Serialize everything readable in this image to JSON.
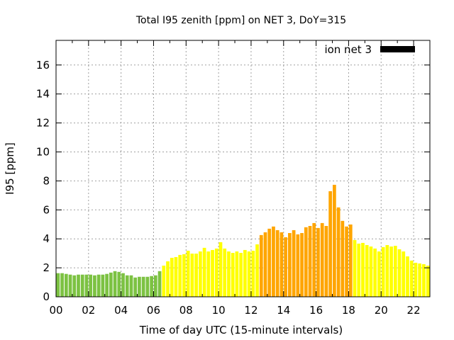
{
  "chart_data": {
    "type": "bar",
    "title": "Total I95 zenith [ppm] on NET 3, DoY=315",
    "xlabel": "Time of day UTC (15-minute intervals)",
    "ylabel": "I95 [ppm]",
    "xlim": [
      0,
      23
    ],
    "ylim": [
      0,
      17.7
    ],
    "bin_hours": 0.25,
    "x_ticks": [
      0,
      2,
      4,
      6,
      8,
      10,
      12,
      14,
      16,
      18,
      20,
      22
    ],
    "x_tick_labels": [
      "00",
      "02",
      "04",
      "06",
      "08",
      "10",
      "12",
      "14",
      "16",
      "18",
      "20",
      "22"
    ],
    "y_ticks": [
      0,
      2,
      4,
      6,
      8,
      10,
      12,
      14,
      16
    ],
    "y_tick_labels": [
      "0",
      "2",
      "4",
      "6",
      "8",
      "10",
      "12",
      "14",
      "16"
    ],
    "grid": true,
    "legend": {
      "label": "ion net 3",
      "position": "top-right",
      "color": "#000000"
    },
    "color_levels": [
      {
        "max": 2,
        "color": "#7cc242"
      },
      {
        "max": 4,
        "color": "#ffff00"
      },
      {
        "max": 1000,
        "color": "#ffa500"
      }
    ],
    "values": [
      1.63,
      1.63,
      1.58,
      1.53,
      1.48,
      1.53,
      1.53,
      1.53,
      1.53,
      1.48,
      1.53,
      1.53,
      1.58,
      1.67,
      1.77,
      1.72,
      1.63,
      1.48,
      1.48,
      1.33,
      1.38,
      1.38,
      1.38,
      1.43,
      1.48,
      1.77,
      2.15,
      2.45,
      2.69,
      2.74,
      2.89,
      2.94,
      3.18,
      2.98,
      2.98,
      3.13,
      3.38,
      3.13,
      3.23,
      3.33,
      3.77,
      3.33,
      3.13,
      3.03,
      3.13,
      3.03,
      3.23,
      3.13,
      3.18,
      3.62,
      4.26,
      4.45,
      4.7,
      4.85,
      4.6,
      4.45,
      4.11,
      4.4,
      4.6,
      4.31,
      4.4,
      4.8,
      4.89,
      5.09,
      4.75,
      5.09,
      4.89,
      7.29,
      7.73,
      6.17,
      5.24,
      4.85,
      4.99,
      3.92,
      3.67,
      3.72,
      3.57,
      3.47,
      3.33,
      3.13,
      3.43,
      3.57,
      3.47,
      3.52,
      3.28,
      3.13,
      2.79,
      2.5,
      2.35,
      2.3,
      2.25,
      2.15
    ]
  }
}
